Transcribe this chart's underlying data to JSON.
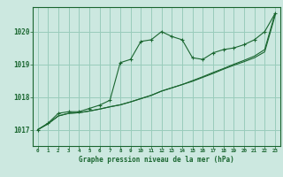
{
  "background_color": "#cce8e0",
  "grid_color": "#99ccbb",
  "line_color": "#1a6630",
  "text_color": "#1a6630",
  "xlabel": "Graphe pression niveau de la mer (hPa)",
  "xlim": [
    -0.5,
    23.5
  ],
  "ylim": [
    1016.5,
    1020.75
  ],
  "yticks": [
    1017,
    1018,
    1019,
    1020
  ],
  "xticks": [
    0,
    1,
    2,
    3,
    4,
    5,
    6,
    7,
    8,
    9,
    10,
    11,
    12,
    13,
    14,
    15,
    16,
    17,
    18,
    19,
    20,
    21,
    22,
    23
  ],
  "series1_x": [
    0,
    1,
    2,
    3,
    4,
    5,
    6,
    7,
    8,
    9,
    10,
    11,
    12,
    13,
    14,
    15,
    16,
    17,
    18,
    19,
    20,
    21,
    22,
    23
  ],
  "series1_y": [
    1017.0,
    1017.2,
    1017.5,
    1017.55,
    1017.55,
    1017.65,
    1017.75,
    1017.9,
    1019.05,
    1019.15,
    1019.7,
    1019.75,
    1020.0,
    1019.85,
    1019.75,
    1019.2,
    1019.15,
    1019.35,
    1019.45,
    1019.5,
    1019.6,
    1019.75,
    1020.0,
    1020.55
  ],
  "series2_x": [
    0,
    1,
    2,
    3,
    4,
    5,
    6,
    7,
    8,
    9,
    10,
    11,
    12,
    13,
    14,
    15,
    16,
    17,
    18,
    19,
    20,
    21,
    22,
    23
  ],
  "series2_y": [
    1017.0,
    1017.18,
    1017.42,
    1017.5,
    1017.52,
    1017.57,
    1017.63,
    1017.7,
    1017.76,
    1017.85,
    1017.95,
    1018.05,
    1018.18,
    1018.28,
    1018.38,
    1018.5,
    1018.62,
    1018.75,
    1018.87,
    1019.0,
    1019.12,
    1019.25,
    1019.45,
    1020.55
  ],
  "series3_x": [
    0,
    1,
    2,
    3,
    4,
    5,
    6,
    7,
    8,
    9,
    10,
    11,
    12,
    13,
    14,
    15,
    16,
    17,
    18,
    19,
    20,
    21,
    22,
    23
  ],
  "series3_y": [
    1017.0,
    1017.18,
    1017.42,
    1017.5,
    1017.52,
    1017.57,
    1017.63,
    1017.7,
    1017.76,
    1017.85,
    1017.95,
    1018.05,
    1018.18,
    1018.28,
    1018.38,
    1018.48,
    1018.6,
    1018.72,
    1018.85,
    1018.97,
    1019.08,
    1019.2,
    1019.38,
    1020.48
  ]
}
